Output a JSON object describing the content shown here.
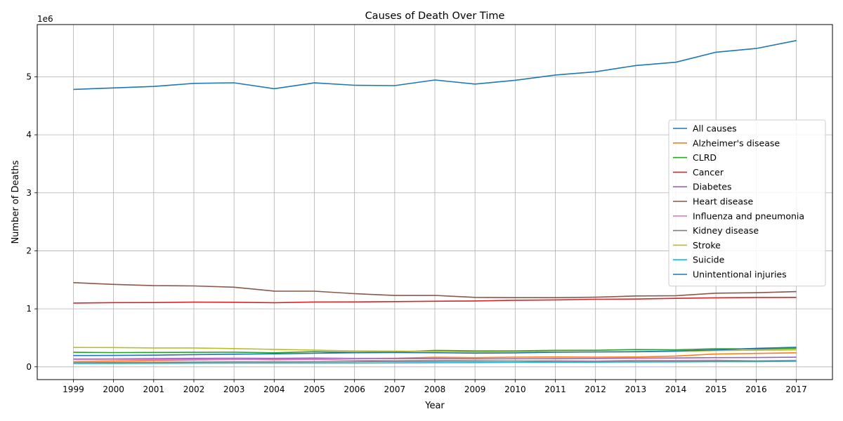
{
  "chart_data": {
    "type": "line",
    "title": "Causes of Death Over Time",
    "xlabel": "Year",
    "ylabel": "Number of Deaths",
    "y_offset_label": "1e6",
    "y_scale_factor": 1000000,
    "x": [
      1999,
      2000,
      2001,
      2002,
      2003,
      2004,
      2005,
      2006,
      2007,
      2008,
      2009,
      2010,
      2011,
      2012,
      2013,
      2014,
      2015,
      2016,
      2017
    ],
    "x_tick_labels": [
      "1999",
      "2000",
      "2001",
      "2002",
      "2003",
      "2004",
      "2005",
      "2006",
      "2007",
      "2008",
      "2009",
      "2010",
      "2011",
      "2012",
      "2013",
      "2014",
      "2015",
      "2016",
      "2017"
    ],
    "xlim": [
      1998.1,
      2017.9
    ],
    "ylim": [
      -220000,
      5900000
    ],
    "y_ticks": [
      0,
      1000000,
      2000000,
      3000000,
      4000000,
      5000000
    ],
    "y_tick_labels": [
      "0",
      "1",
      "2",
      "3",
      "4",
      "5"
    ],
    "grid": true,
    "legend_position": "center-right",
    "series": [
      {
        "name": "All causes",
        "color": "#1f77b4",
        "values": [
          4782000,
          4808000,
          4833000,
          4886000,
          4896000,
          4795000,
          4895000,
          4854000,
          4848000,
          4944000,
          4874000,
          4940000,
          5030000,
          5086000,
          5194000,
          5250000,
          5424000,
          5488000,
          5624000
        ]
      },
      {
        "name": "Alzheimer's disease",
        "color": "#ff7f0e",
        "values": [
          89000,
          99000,
          107000,
          117000,
          126000,
          131000,
          144000,
          145000,
          148000,
          165000,
          158000,
          167000,
          170000,
          167000,
          169000,
          186000,
          222000,
          231000,
          242000
        ]
      },
      {
        "name": "CLRD",
        "color": "#2ca02c",
        "values": [
          250000,
          246000,
          248000,
          251000,
          253000,
          242000,
          261000,
          249000,
          254000,
          283000,
          275000,
          276000,
          284000,
          286000,
          298000,
          294000,
          312000,
          308000,
          320000
        ]
      },
      {
        "name": "Cancer",
        "color": "#d62728",
        "values": [
          1099000,
          1107000,
          1108000,
          1115000,
          1113000,
          1106000,
          1118000,
          1119000,
          1125000,
          1131000,
          1136000,
          1148000,
          1154000,
          1165000,
          1168000,
          1180000,
          1190000,
          1196000,
          1198000
        ]
      },
      {
        "name": "Diabetes",
        "color": "#9467bd",
        "values": [
          136000,
          138000,
          142000,
          146000,
          148000,
          146000,
          151000,
          145000,
          142000,
          142000,
          137000,
          139000,
          140000,
          145000,
          149000,
          152000,
          158000,
          160000,
          166000
        ]
      },
      {
        "name": "Heart disease",
        "color": "#8c564b",
        "values": [
          1451000,
          1421000,
          1400000,
          1395000,
          1373000,
          1305000,
          1304000,
          1262000,
          1230000,
          1231000,
          1198000,
          1193000,
          1193000,
          1200000,
          1222000,
          1227000,
          1270000,
          1277000,
          1297000
        ]
      },
      {
        "name": "Influenza and pneumonia",
        "color": "#e377c2",
        "values": [
          127000,
          130000,
          124000,
          127000,
          129000,
          119000,
          127000,
          113000,
          105000,
          113000,
          107000,
          101000,
          107000,
          101000,
          113000,
          110000,
          114000,
          103000,
          111000
        ]
      },
      {
        "name": "Kidney disease",
        "color": "#7f7f7f",
        "values": [
          70000,
          74000,
          78000,
          81000,
          85000,
          85000,
          87000,
          90000,
          93000,
          96000,
          97000,
          100000,
          90000,
          91000,
          94000,
          95000,
          99000,
          101000,
          101000
        ]
      },
      {
        "name": "Stroke",
        "color": "#bcbd22",
        "values": [
          334000,
          333000,
          326000,
          325000,
          315000,
          301000,
          288000,
          274000,
          271000,
          266000,
          259000,
          260000,
          258000,
          258000,
          259000,
          266000,
          281000,
          285000,
          293000
        ]
      },
      {
        "name": "Suicide",
        "color": "#17becf",
        "values": [
          59000,
          59000,
          61000,
          63000,
          64000,
          64000,
          65000,
          66000,
          68000,
          71000,
          73000,
          76000,
          79000,
          80000,
          83000,
          85000,
          88000,
          90000,
          94000
        ]
      },
      {
        "name": "Unintentional injuries",
        "color": "#1f77b4",
        "values": [
          195000,
          196000,
          201000,
          210000,
          218000,
          224000,
          234000,
          243000,
          247000,
          243000,
          236000,
          240000,
          253000,
          256000,
          261000,
          273000,
          292000,
          320000,
          338000
        ]
      }
    ]
  }
}
